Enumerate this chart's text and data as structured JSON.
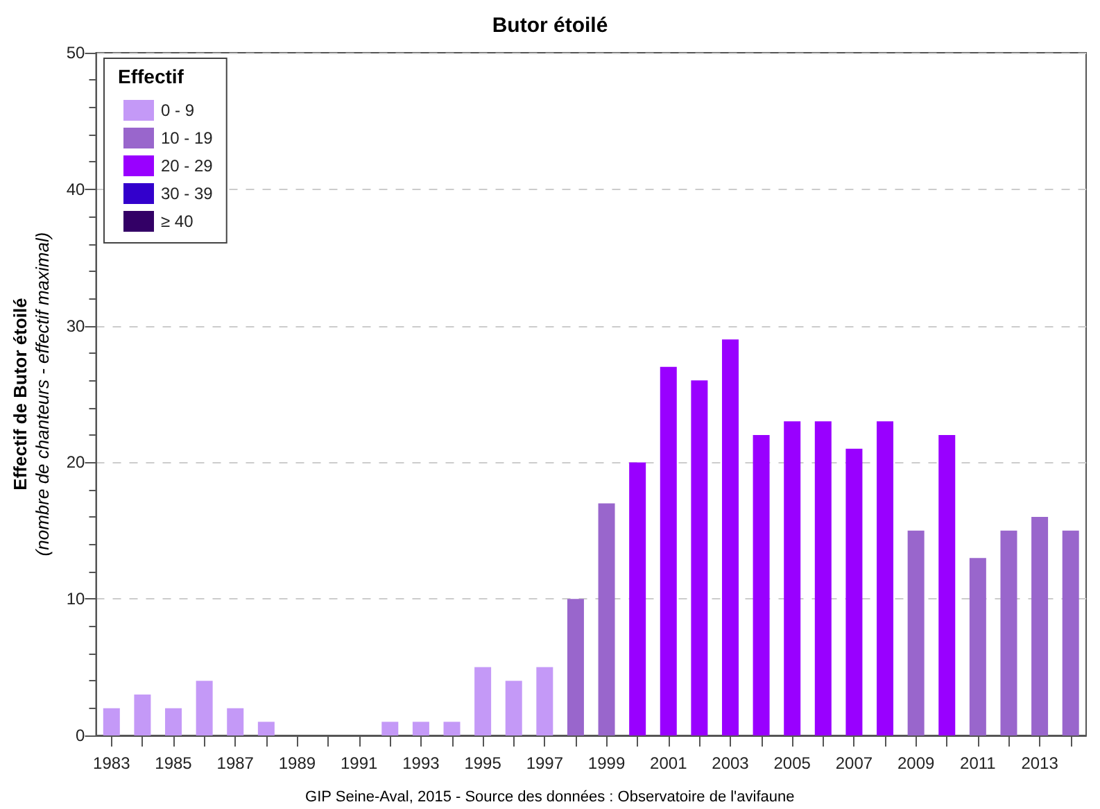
{
  "chart_data": {
    "type": "bar",
    "title": "Butor étoilé",
    "ylabel": "Effectif de Butor étoilé\n(nombre de chanteurs - effectif maximal)",
    "legend_title": "Effectif",
    "annotations": [
      "GIP Seine-Aval, 2015 - Source des données : Observatoire de l'avifaune"
    ],
    "categories": [
      "1983",
      null,
      "1985",
      null,
      "1987",
      null,
      "1989",
      null,
      "1991",
      null,
      "1993",
      null,
      "1995",
      null,
      "1997",
      null,
      "1999",
      null,
      "2001",
      null,
      "2003",
      null,
      "2005",
      null,
      "2007",
      null,
      "2009",
      null,
      "2011",
      null,
      "2013",
      null
    ],
    "stacked": true,
    "series": [
      {
        "name": "0 - 9",
        "color": "#c499f7",
        "values": [
          2,
          3,
          2,
          4,
          2,
          1,
          0,
          0,
          0,
          1,
          1,
          1,
          5,
          4,
          5,
          null,
          null,
          null,
          null,
          null,
          null,
          null,
          null,
          null,
          null,
          null,
          null,
          null,
          null,
          null,
          null,
          null
        ]
      },
      {
        "name": "10 - 19",
        "color": "#9966cc",
        "values": [
          null,
          null,
          null,
          null,
          null,
          null,
          null,
          null,
          null,
          null,
          null,
          null,
          null,
          null,
          null,
          10,
          17,
          null,
          null,
          null,
          null,
          null,
          null,
          null,
          null,
          null,
          15,
          null,
          13,
          15,
          16,
          15
        ]
      },
      {
        "name": "20 - 29",
        "color": "#9900ff",
        "values": [
          null,
          null,
          null,
          null,
          null,
          null,
          null,
          null,
          null,
          null,
          null,
          null,
          null,
          null,
          null,
          null,
          null,
          20,
          27,
          26,
          29,
          22,
          23,
          23,
          21,
          23,
          null,
          22,
          null,
          null,
          null,
          null
        ]
      },
      {
        "name": "30 - 39",
        "color": "#3300cc",
        "values": [
          null,
          null,
          null,
          null,
          null,
          null,
          null,
          null,
          null,
          null,
          null,
          null,
          null,
          null,
          null,
          null,
          null,
          null,
          null,
          null,
          null,
          null,
          null,
          null,
          null,
          null,
          null,
          null,
          null,
          null,
          null,
          null
        ]
      },
      {
        "name": "≥ 40",
        "color": "#330066",
        "values": [
          null,
          null,
          null,
          null,
          null,
          null,
          null,
          null,
          null,
          null,
          null,
          null,
          null,
          null,
          null,
          null,
          null,
          null,
          null,
          null,
          null,
          null,
          null,
          null,
          null,
          null,
          null,
          null,
          null,
          null,
          null,
          null
        ]
      }
    ],
    "ylim": [
      0,
      50
    ],
    "yticks": [
      0,
      10,
      20,
      30,
      40,
      50
    ],
    "grid": "y",
    "legend": "top left"
  }
}
